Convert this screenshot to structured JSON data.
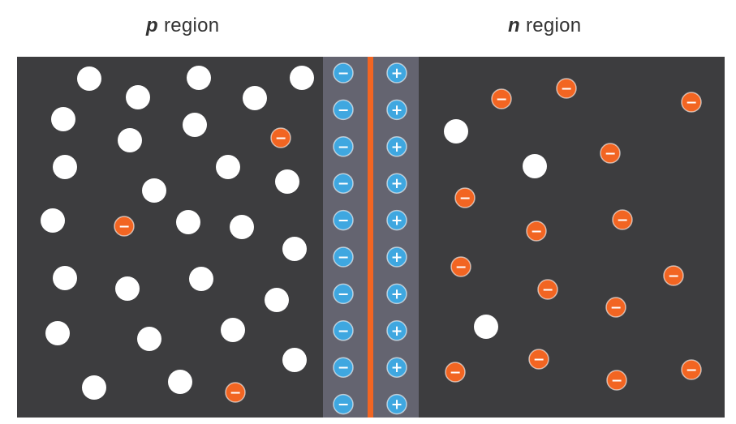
{
  "p_region_label": {
    "letter": "p",
    "word": "region"
  },
  "n_region_label": {
    "letter": "n",
    "word": "region"
  },
  "minus_sign": "−",
  "plus_sign": "+",
  "colors": {
    "background": "#3d3d3f",
    "depletion": "#646470",
    "hole": "#ffffff",
    "electron": "#f26522",
    "ion": "#3fa7e0",
    "junction": "#f26522"
  }
}
